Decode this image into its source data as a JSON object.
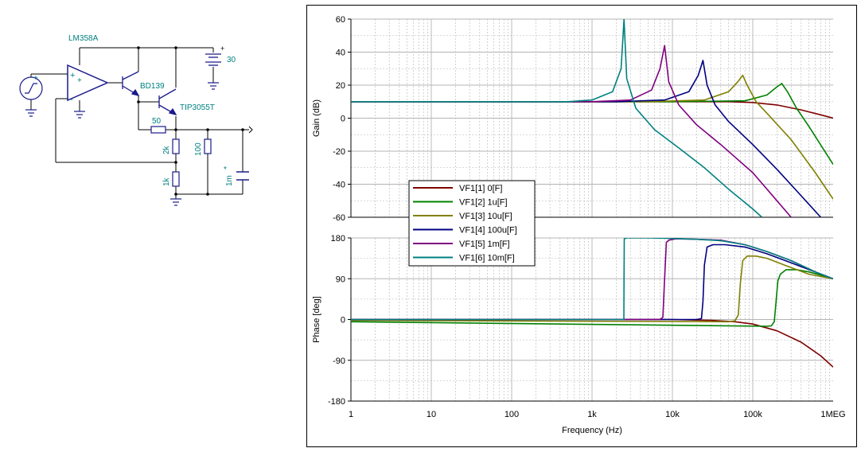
{
  "schematic": {
    "opamp_label": "LM358A",
    "q1_label": "BD139",
    "q2_label": "TIP3055T",
    "supply_value": "30",
    "supply_plus": "+",
    "r50_label": "50",
    "r2k_label": "2k",
    "r100_label": "100",
    "r1k_label": "1k",
    "cap_label": "1m",
    "cap_star": "*",
    "opamp_plus": "+",
    "opamp_minus": "-",
    "opamp_power_plus": "+",
    "src_plus": "+"
  },
  "colors": {
    "schematic_wire": "#000000",
    "schematic_part": "#1a1a8c",
    "schematic_label": "#008080",
    "grid": "#b4b4b4",
    "series": [
      "#7f0000",
      "#008000",
      "#808000",
      "#000080",
      "#800080",
      "#008080"
    ]
  },
  "chart_data": [
    {
      "type": "line",
      "ylabel": "Gain (dB)",
      "xlabel": "",
      "xscale": "log",
      "xlim": [
        1,
        1000000
      ],
      "ylim": [
        -60,
        60
      ],
      "yticks": [
        60,
        40,
        20,
        0,
        -20,
        -40,
        -60
      ],
      "grid": true,
      "legend": "center-left",
      "series": [
        {
          "name": "VF1[1]  0[F]",
          "x": [
            1,
            1000,
            10000,
            50000,
            100000,
            200000,
            400000,
            700000,
            1000000
          ],
          "y": [
            10,
            10,
            10,
            10,
            9.5,
            8,
            5,
            2,
            0
          ]
        },
        {
          "name": "VF1[2]  1u[F]",
          "x": [
            1,
            10000,
            80000,
            150000,
            200000,
            230000,
            270000,
            350000,
            500000,
            1000000
          ],
          "y": [
            10,
            10,
            10.5,
            14,
            19,
            21,
            16,
            6,
            -5,
            -28
          ]
        },
        {
          "name": "VF1[3]  10u[F]",
          "x": [
            1,
            5000,
            25000,
            50000,
            65000,
            75000,
            85000,
            110000,
            150000,
            300000,
            600000,
            1000000
          ],
          "y": [
            10,
            10,
            11,
            16,
            22,
            26,
            20,
            10,
            3,
            -13,
            -33,
            -49
          ]
        },
        {
          "name": "VF1[4]  100u[F]",
          "x": [
            1,
            2000,
            8000,
            16000,
            21000,
            24000,
            27000,
            34000,
            50000,
            100000,
            200000,
            400000,
            700000
          ],
          "y": [
            10,
            10,
            11,
            16,
            26,
            35,
            20,
            8,
            -2,
            -16,
            -31,
            -47,
            -60
          ]
        },
        {
          "name": "VF1[5]  1m[F]",
          "x": [
            1,
            1000,
            3000,
            5500,
            7000,
            8000,
            9000,
            12000,
            20000,
            40000,
            100000,
            200000,
            300000
          ],
          "y": [
            10,
            10,
            11,
            17,
            30,
            44,
            22,
            8,
            -4,
            -16,
            -33,
            -50,
            -60
          ]
        },
        {
          "name": "VF1[6]  10m[F]",
          "x": [
            1,
            500,
            1000,
            1800,
            2300,
            2500,
            2700,
            3500,
            6000,
            12000,
            25000,
            50000,
            100000,
            130000
          ],
          "y": [
            10,
            10,
            11,
            16,
            30,
            60,
            24,
            6,
            -7,
            -18,
            -30,
            -43,
            -55,
            -60
          ]
        }
      ]
    },
    {
      "type": "line",
      "ylabel": "Phase [deg]",
      "xlabel": "Frequency (Hz)",
      "xscale": "log",
      "xlim": [
        1,
        1000000
      ],
      "ylim": [
        -180,
        180
      ],
      "xtick_labels": [
        "1",
        "10",
        "100",
        "1k",
        "10k",
        "100k",
        "1MEG"
      ],
      "yticks": [
        180,
        90,
        0,
        -90,
        -180
      ],
      "grid": true,
      "series": [
        {
          "name": "VF1[1]  0[F]",
          "x": [
            1,
            10000,
            30000,
            60000,
            100000,
            200000,
            400000,
            700000,
            1000000
          ],
          "y": [
            0,
            0,
            -2,
            -5,
            -10,
            -25,
            -50,
            -80,
            -105
          ]
        },
        {
          "name": "VF1[2]  1u[F]",
          "x": [
            1,
            150000,
            170000,
            185000,
            195000,
            205000,
            220000,
            260000,
            350000,
            500000,
            700000,
            1000000
          ],
          "y": [
            -5,
            -15,
            -14,
            -5,
            40,
            85,
            100,
            110,
            110,
            105,
            98,
            90
          ]
        },
        {
          "name": "VF1[3]  10u[F]",
          "x": [
            1,
            50000,
            60000,
            66000,
            70000,
            75000,
            85000,
            110000,
            150000,
            250000,
            500000,
            1000000
          ],
          "y": [
            -2,
            -5,
            -3,
            10,
            80,
            130,
            140,
            140,
            135,
            120,
            100,
            90
          ]
        },
        {
          "name": "VF1[4]  100u[F]",
          "x": [
            1,
            20000,
            23000,
            24000,
            25000,
            27000,
            32000,
            45000,
            80000,
            150000,
            300000,
            600000,
            1000000
          ],
          "y": [
            0,
            0,
            2,
            40,
            120,
            160,
            165,
            165,
            160,
            145,
            125,
            105,
            90
          ]
        },
        {
          "name": "VF1[5]  1m[F]",
          "x": [
            1,
            7000,
            7600,
            8000,
            8400,
            9000,
            11000,
            20000,
            40000,
            80000,
            150000,
            300000,
            600000,
            1000000
          ],
          "y": [
            0,
            0,
            5,
            90,
            170,
            175,
            178,
            177,
            175,
            165,
            150,
            130,
            105,
            90
          ]
        },
        {
          "name": "VF1[6]  10m[F]",
          "x": [
            1,
            2490,
            2500,
            2520,
            2700,
            5000,
            10000,
            20000,
            40000,
            80000,
            150000,
            300000,
            600000,
            1000000
          ],
          "y": [
            0,
            0,
            90,
            178,
            180,
            180,
            179,
            177,
            174,
            165,
            150,
            130,
            105,
            90
          ]
        }
      ]
    }
  ]
}
